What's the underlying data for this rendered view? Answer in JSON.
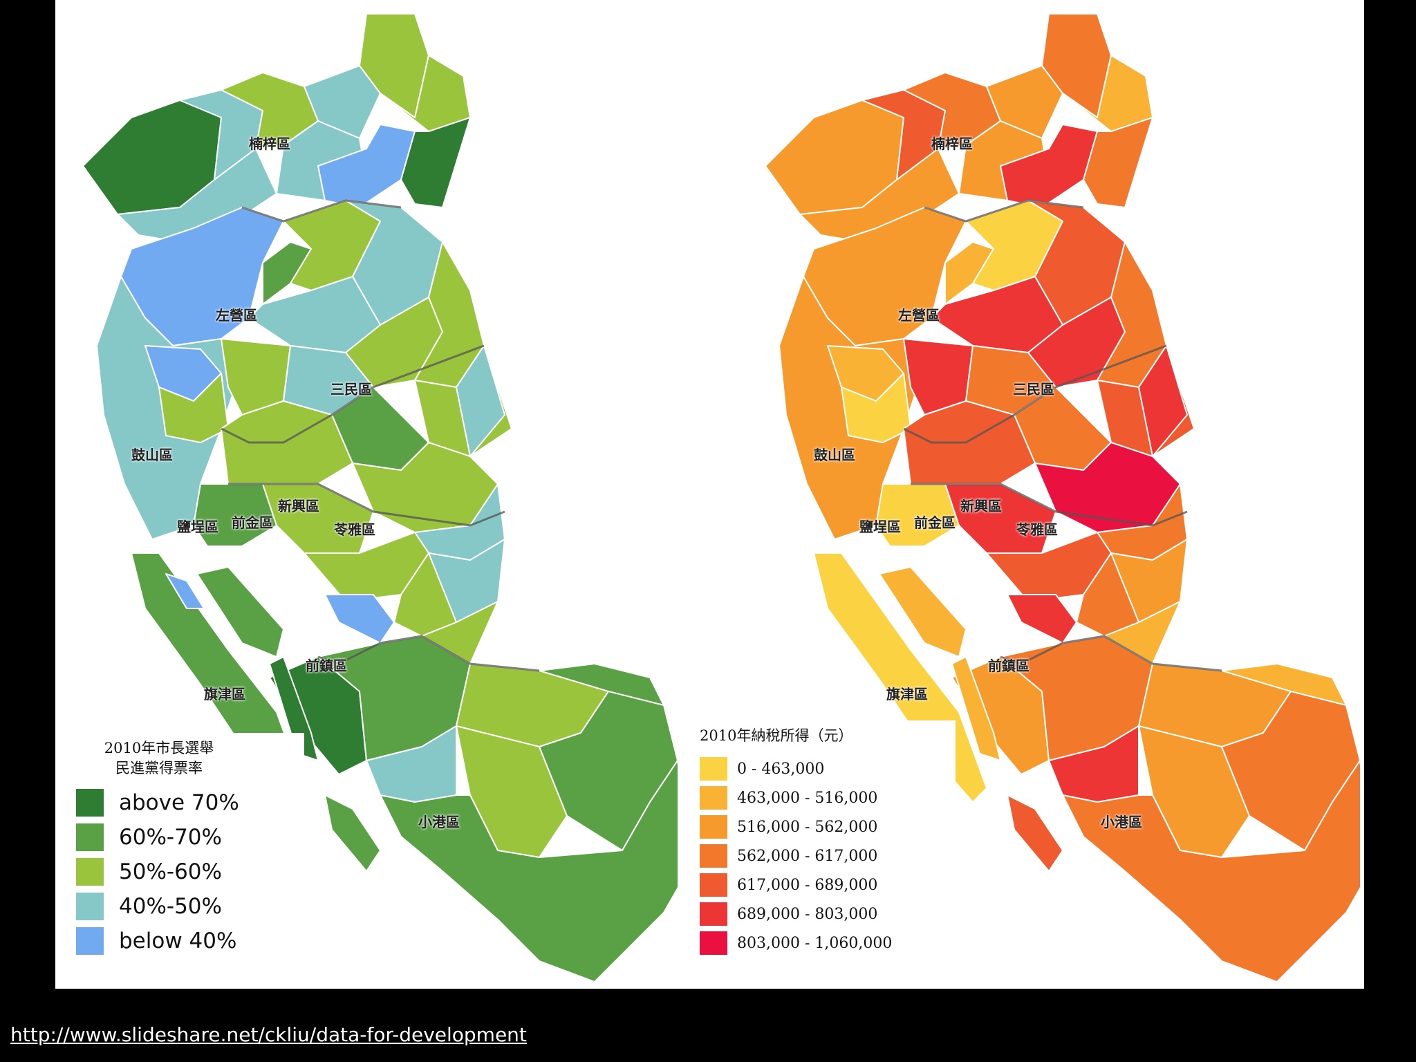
{
  "source_url": "http://www.slideshare.net/ckliu/data-for-development",
  "districts": [
    "楠梓區",
    "左營區",
    "三民區",
    "鼓山區",
    "新興區",
    "前金區",
    "鹽埕區",
    "苓雅區",
    "前鎮區",
    "旗津區",
    "小港區"
  ],
  "vote_map": {
    "legend_title_line1": "2010年市長選舉",
    "legend_title_line2": "民進黨得票率",
    "legend": [
      {
        "label": "above 70%",
        "color": "#2e7d32"
      },
      {
        "label": "60%-70%",
        "color": "#5aa146"
      },
      {
        "label": "50%-60%",
        "color": "#9ac43c"
      },
      {
        "label": "40%-50%",
        "color": "#86c8c8"
      },
      {
        "label": "below 40%",
        "color": "#72aaf2"
      }
    ]
  },
  "income_map": {
    "legend_title": "2010年納稅所得（元）",
    "legend": [
      {
        "label": "0 - 463,000",
        "color": "#fbd342"
      },
      {
        "label": "463,000 - 516,000",
        "color": "#f9b234"
      },
      {
        "label": "516,000 - 562,000",
        "color": "#f79a2e"
      },
      {
        "label": "562,000 - 617,000",
        "color": "#f2782c"
      },
      {
        "label": "617,000 - 689,000",
        "color": "#ef5a2e"
      },
      {
        "label": "689,000 - 803,000",
        "color": "#ee3535"
      },
      {
        "label": "803,000 - 1,060,000",
        "color": "#ea1040"
      }
    ]
  }
}
